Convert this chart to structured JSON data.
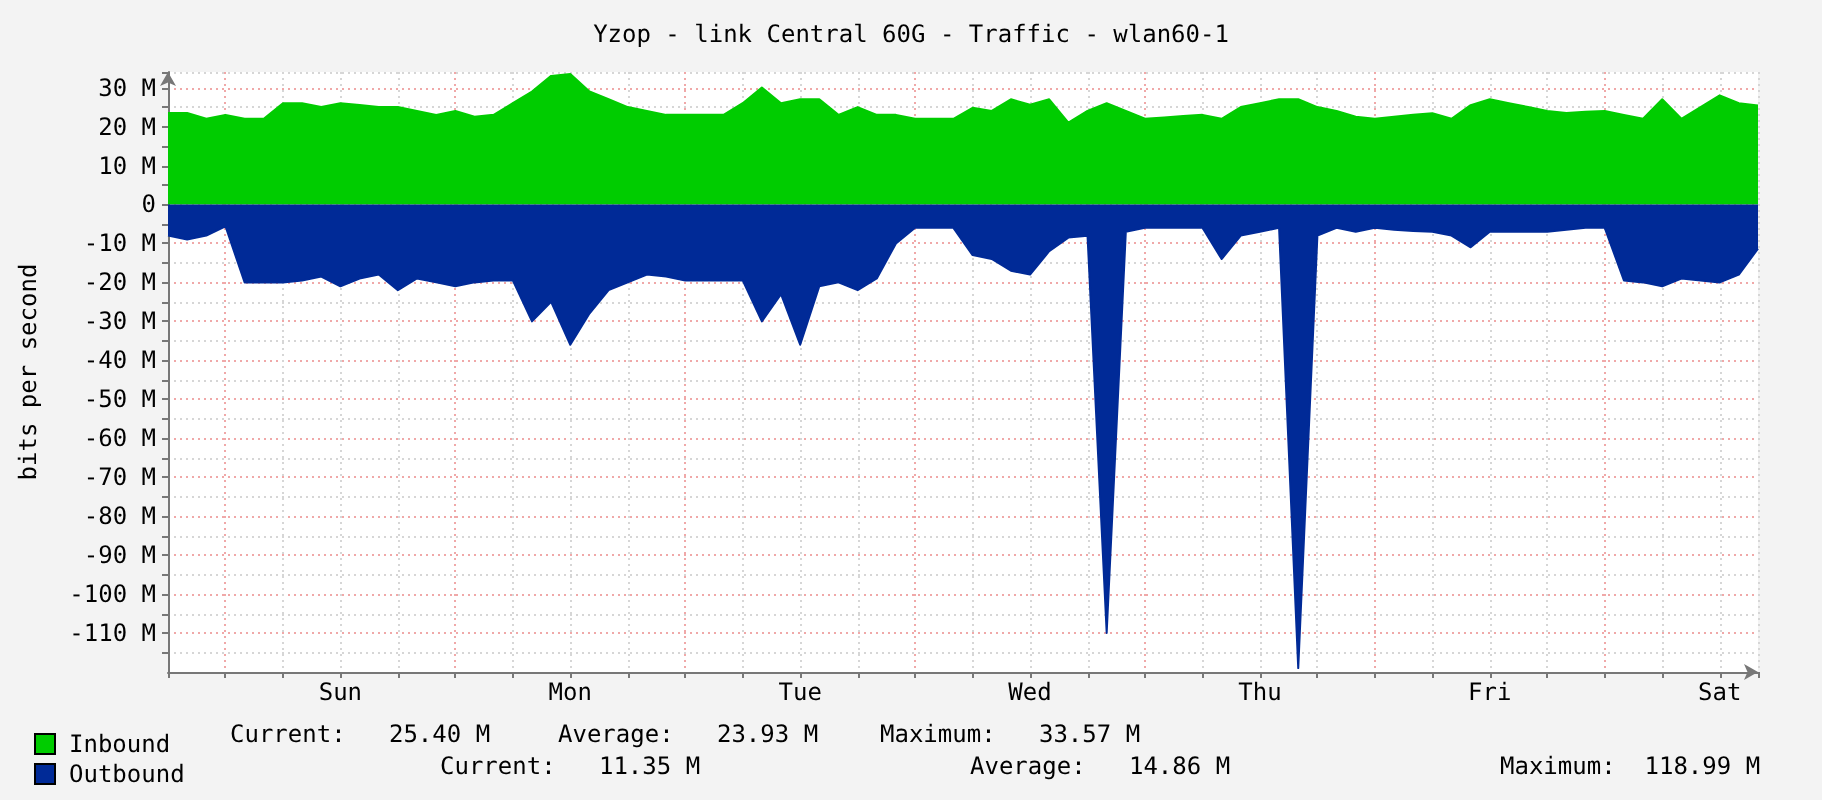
{
  "chart_data": {
    "type": "area",
    "title": "Yzop - link Central 60G - Traffic - wlan60-1",
    "ylabel": "bits per second",
    "categories": [
      null,
      null,
      null,
      null,
      null,
      null,
      null,
      null,
      null,
      "Sun",
      null,
      null,
      null,
      null,
      null,
      null,
      null,
      null,
      null,
      null,
      null,
      "Mon",
      null,
      null,
      null,
      null,
      null,
      null,
      null,
      null,
      null,
      null,
      null,
      "Tue",
      null,
      null,
      null,
      null,
      null,
      null,
      null,
      null,
      null,
      null,
      null,
      "Wed",
      null,
      null,
      null,
      null,
      null,
      null,
      null,
      null,
      null,
      null,
      null,
      "Thu",
      null,
      null,
      null,
      null,
      null,
      null,
      null,
      null,
      null,
      null,
      null,
      "Fri",
      null,
      null,
      null,
      null,
      null,
      null,
      null,
      null,
      null,
      null,
      null,
      "Sat",
      null,
      null
    ],
    "ylim": [
      -120,
      34
    ],
    "yticks": [
      {
        "value": -115,
        "label": null
      },
      {
        "value": -110,
        "label": "-110 M"
      },
      {
        "value": -105,
        "label": null
      },
      {
        "value": -100,
        "label": "-100 M"
      },
      {
        "value": -95,
        "label": null
      },
      {
        "value": -90,
        "label": "-90 M"
      },
      {
        "value": -85,
        "label": null
      },
      {
        "value": -80,
        "label": "-80 M"
      },
      {
        "value": -75,
        "label": null
      },
      {
        "value": -70,
        "label": "-70 M"
      },
      {
        "value": -65,
        "label": null
      },
      {
        "value": -60,
        "label": "-60 M"
      },
      {
        "value": -55,
        "label": null
      },
      {
        "value": -50,
        "label": "-50 M"
      },
      {
        "value": -45,
        "label": null
      },
      {
        "value": -40,
        "label": "-40 M"
      },
      {
        "value": -35,
        "label": null
      },
      {
        "value": -30,
        "label": "-30 M"
      },
      {
        "value": -25,
        "label": null
      },
      {
        "value": -20,
        "label": "-20 M"
      },
      {
        "value": -15,
        "label": null
      },
      {
        "value": -10,
        "label": "-10 M"
      },
      {
        "value": -5,
        "label": null
      },
      0,
      {
        "value": 5,
        "label": null
      },
      {
        "value": 10,
        "label": "10 M"
      },
      {
        "value": 15,
        "label": null
      },
      {
        "value": 20,
        "label": "20 M"
      },
      {
        "value": 25,
        "label": null
      },
      {
        "value": 30,
        "label": "30 M"
      }
    ],
    "grid": true,
    "legend": "bottom left",
    "annotations": [
      "Current:   25.40 M",
      "Average:   23.93 M",
      "Maximum:   33.57 M",
      "Current:   11.35 M",
      "Average:   14.86 M",
      "Maximum:  118.99 M"
    ],
    "series": [
      {
        "name": "Inbound",
        "color": "#00cc00",
        "values": [
          23.5,
          23.5,
          22,
          23,
          22,
          22,
          26,
          26,
          25,
          26,
          25.5,
          25,
          25,
          24,
          23,
          24,
          22.5,
          23,
          26,
          29,
          33,
          33.5,
          29,
          27,
          25,
          24,
          23,
          23,
          23,
          23,
          26,
          30,
          26,
          27,
          27,
          23,
          25,
          23,
          23,
          22,
          22,
          22,
          24.8,
          24,
          27,
          25.6,
          27,
          21,
          24,
          26,
          24,
          22,
          22.3,
          22.7,
          23,
          22,
          25,
          26,
          27,
          27,
          25,
          24,
          22.5,
          22,
          22.5,
          23,
          23.4,
          22,
          25.5,
          27,
          26,
          25,
          24,
          23.5,
          23.8,
          24,
          23,
          22,
          27,
          22,
          25,
          28,
          26,
          25.4
        ]
      },
      {
        "name": "Outbound",
        "color": "#002a97",
        "values": [
          -8,
          -9,
          -8,
          -5.6,
          -20,
          -20,
          -20,
          -19.5,
          -18.5,
          -21,
          -19,
          -18,
          -22,
          -19,
          -20,
          -21,
          -20,
          -19.5,
          -19.5,
          -30,
          -25,
          -36,
          -28,
          -22,
          -20,
          -18,
          -18.5,
          -19.5,
          -19.5,
          -19.5,
          -19.5,
          -30,
          -23,
          -36,
          -21,
          -20,
          -22,
          -19,
          -10,
          -6,
          -6,
          -6,
          -13,
          -14,
          -17,
          -18,
          -12,
          -8.5,
          -8,
          -110,
          -7,
          -6,
          -6,
          -6,
          -6,
          -14,
          -8,
          -7,
          -6,
          -119,
          -8,
          -6,
          -7,
          -6,
          -6.5,
          -6.8,
          -7,
          -8,
          -11,
          -7,
          -7,
          -7,
          -7,
          -6.5,
          -6,
          -6,
          -19.5,
          -20,
          -21,
          -19,
          -19.5,
          -20,
          -18,
          -11.35
        ]
      }
    ]
  }
}
